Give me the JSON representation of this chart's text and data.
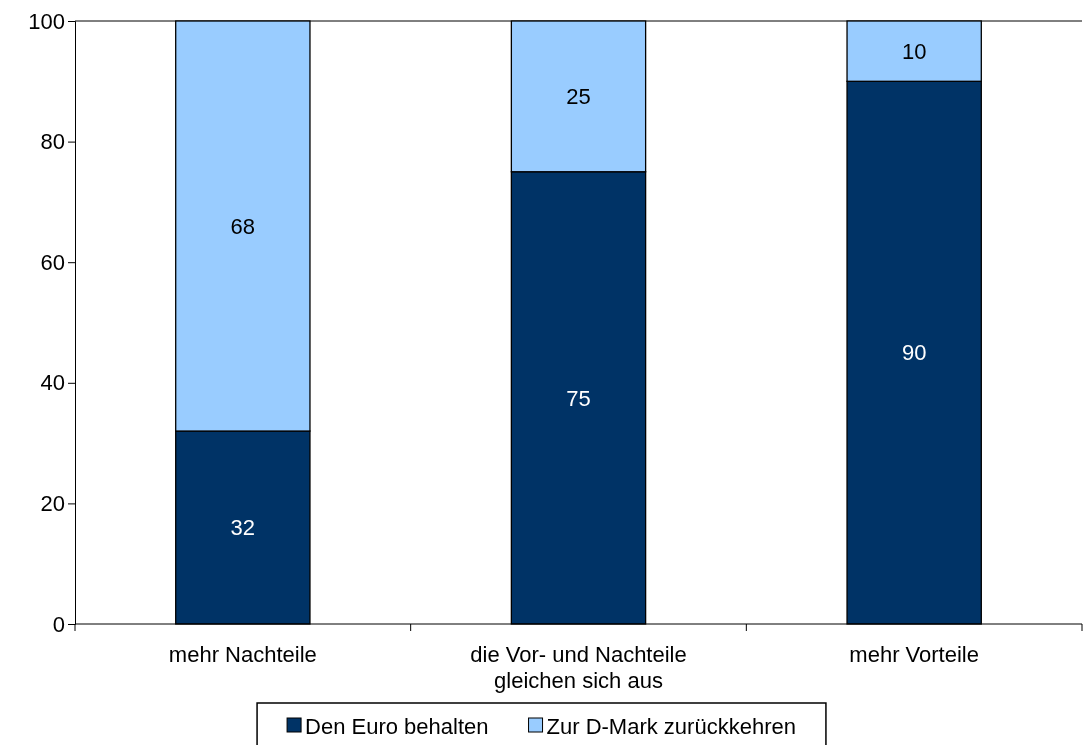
{
  "chart_data": {
    "type": "bar",
    "stacked": true,
    "categories": [
      "mehr Nachteile",
      "die Vor- und Nachteile gleichen sich aus",
      "mehr Vorteile"
    ],
    "series": [
      {
        "name": "Den Euro behalten",
        "color": "#003366",
        "values": [
          32,
          75,
          90
        ]
      },
      {
        "name": "Zur D-Mark zurückkehren",
        "color": "#99ccff",
        "values": [
          68,
          25,
          10
        ]
      }
    ],
    "ylim": [
      0,
      100
    ],
    "yticks": [
      0,
      20,
      40,
      60,
      80,
      100
    ],
    "grid": false,
    "legend": "bottom",
    "data_labels": true
  }
}
